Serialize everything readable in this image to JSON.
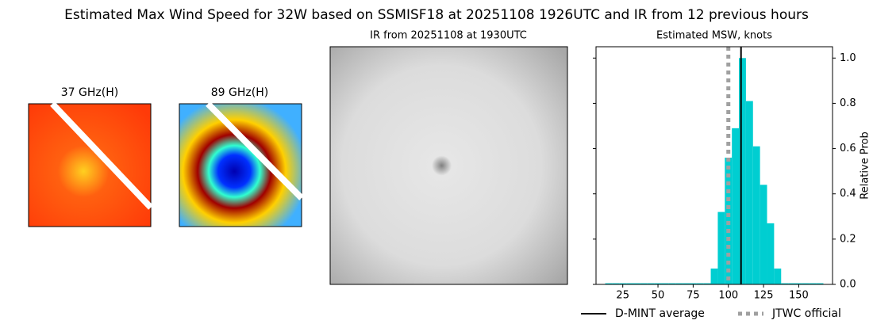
{
  "title": "Estimated Max Wind Speed for 32W based on SSMISF18 at 20251108 1926UTC and IR from 12 previous hours",
  "panels": [
    {
      "title": "37 GHz(H)"
    },
    {
      "title": "89 GHz(H)"
    },
    {
      "title": "IR from 20251108 at 1930UTC"
    }
  ],
  "chart_data": {
    "type": "histogram",
    "title": "Estimated MSW, knots",
    "y_label": "Relative Prob",
    "bins": [
      12.5,
      17.5,
      22.5,
      27.5,
      32.5,
      37.5,
      42.5,
      47.5,
      52.5,
      57.5,
      62.5,
      67.5,
      72.5,
      77.5,
      82.5,
      87.5,
      92.5,
      97.5,
      102.5,
      107.5,
      112.5,
      117.5,
      122.5,
      127.5,
      132.5,
      137.5,
      142.5,
      147.5,
      152.5,
      157.5,
      162.5,
      167.5
    ],
    "counts": [
      0.005,
      0.005,
      0.005,
      0.005,
      0.005,
      0.005,
      0.005,
      0.005,
      0.005,
      0.005,
      0.005,
      0.005,
      0.005,
      0.005,
      0.005,
      0.07,
      0.32,
      0.56,
      0.69,
      1.0,
      0.81,
      0.61,
      0.44,
      0.27,
      0.07,
      0.005,
      0.005,
      0.005,
      0.005,
      0.005,
      0.005
    ],
    "color": "#00ced1",
    "xlim": [
      6,
      174
    ],
    "xticks": [
      25,
      50,
      75,
      100,
      125,
      150
    ],
    "ylim": [
      0,
      1.05
    ],
    "yticks": [
      {
        "value": 0,
        "label": "0.0"
      },
      0.2,
      0.4,
      0.6,
      0.8,
      {
        "value": 1,
        "label": "1.0"
      }
    ],
    "reference_lines": [
      {
        "name": "D-MINT average",
        "value": 109,
        "color": "#000000",
        "style": "solid"
      },
      {
        "name": "JTWC official",
        "value": 100,
        "color": "#a0a0a0",
        "style": "dotted"
      }
    ]
  }
}
